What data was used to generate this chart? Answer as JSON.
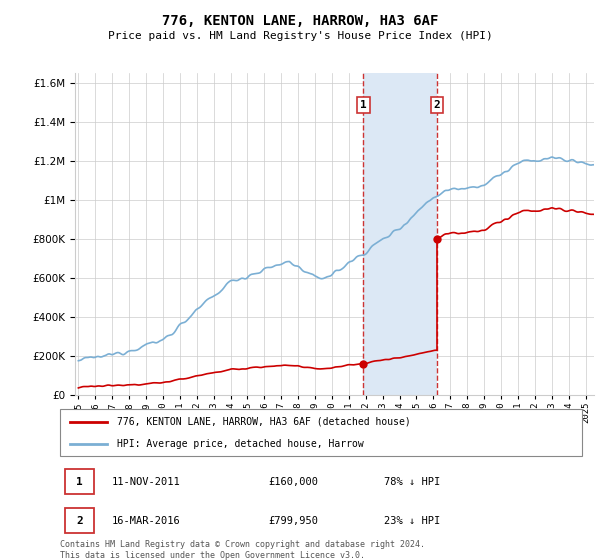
{
  "title": "776, KENTON LANE, HARROW, HA3 6AF",
  "subtitle": "Price paid vs. HM Land Registry's House Price Index (HPI)",
  "legend_line1": "776, KENTON LANE, HARROW, HA3 6AF (detached house)",
  "legend_line2": "HPI: Average price, detached house, Harrow",
  "sale1_label": "1",
  "sale1_date": "11-NOV-2011",
  "sale1_price": "£160,000",
  "sale1_hpi": "78% ↓ HPI",
  "sale1_year": 2011.86,
  "sale1_value": 160000,
  "sale2_label": "2",
  "sale2_date": "16-MAR-2016",
  "sale2_price": "£799,950",
  "sale2_hpi": "23% ↓ HPI",
  "sale2_year": 2016.21,
  "sale2_value": 799950,
  "red_color": "#cc0000",
  "blue_color": "#7bafd4",
  "shade_color": "#dce8f5",
  "vline_color": "#cc3333",
  "footer": "Contains HM Land Registry data © Crown copyright and database right 2024.\nThis data is licensed under the Open Government Licence v3.0.",
  "ylim": [
    0,
    1650000
  ],
  "xlim_start": 1994.8,
  "xlim_end": 2025.5,
  "yticks": [
    0,
    200000,
    400000,
    600000,
    800000,
    1000000,
    1200000,
    1400000,
    1600000
  ]
}
